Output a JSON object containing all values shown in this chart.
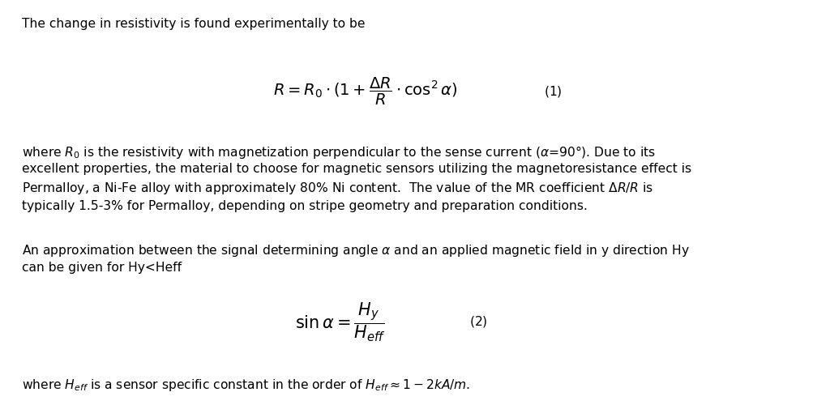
{
  "background_color": "#ffffff",
  "figsize": [
    10.24,
    5.0
  ],
  "dpi": 100,
  "text_color": "#000000",
  "font_size_body": 11.2,
  "font_size_eq": 14,
  "line1": "The change in resistivity is found experimentally to be",
  "eq1": "$R = R_0 \\cdot (1 + \\dfrac{\\Delta R}{R} \\cdot \\cos^2 \\alpha)$",
  "eq1_label": "$(1)$",
  "para1_line1": "where $R_0$ is the resistivity with magnetization perpendicular to the sense current ($\\alpha$=90°). Due to its",
  "para1_line2": "excellent properties, the material to choose for magnetic sensors utilizing the magnetoresistance effect is",
  "para1_line3": "Permalloy, a Ni-Fe alloy with approximately 80% Ni content.  The value of the MR coefficient $\\Delta R/R$ is",
  "para1_line4": "typically 1.5-3% for Permalloy, depending on stripe geometry and preparation conditions.",
  "para2_line1": "An approximation between the signal determining angle $\\alpha$ and an applied magnetic field in y direction Hy",
  "para2_line2": "can be given for Hy<Heff",
  "eq2": "$\\sin \\alpha = \\dfrac{H_y}{H_{eff}}$",
  "eq2_label": "$(2)$",
  "para3": "where $H_{eff}$ is a sensor specific constant in the order of $H_{eff} \\approx 1-2kA/m$."
}
